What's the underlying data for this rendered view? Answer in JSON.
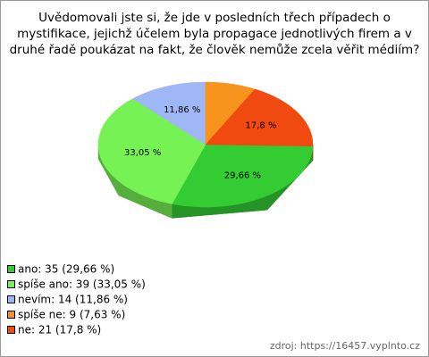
{
  "chart_data": {
    "type": "pie3d",
    "title_lines": [
      "Uvědomovali jste si, že jde v posledních třech případech o",
      "mystifikace, jejichž účelem byla propagace jednotlivých firem a v",
      "druhé řadě poukázat na fakt, že člověk nemůže zcela věřit médiím?"
    ],
    "categories": [
      "ano",
      "spíše ano",
      "nevím",
      "spíše ne",
      "ne"
    ],
    "values": [
      29.66,
      33.05,
      11.86,
      7.63,
      17.8
    ],
    "value_labels": [
      "29,66 %",
      "33,05 %",
      "11,86 %",
      null,
      "17,8 %"
    ],
    "colors": [
      "#33cc33",
      "#77f255",
      "#9fb6f7",
      "#f7941d",
      "#f04a10"
    ],
    "legend_labels": [
      "ano: 35 (29,66 %)",
      "spíše ano: 39 (33,05 %)",
      "nevím: 14 (11,86 %)",
      "spíše ne: 9 (7,63 %)",
      "ne: 21 (17,8 %)"
    ],
    "source": "zdroj: https://16457.vyplnto.cz"
  }
}
